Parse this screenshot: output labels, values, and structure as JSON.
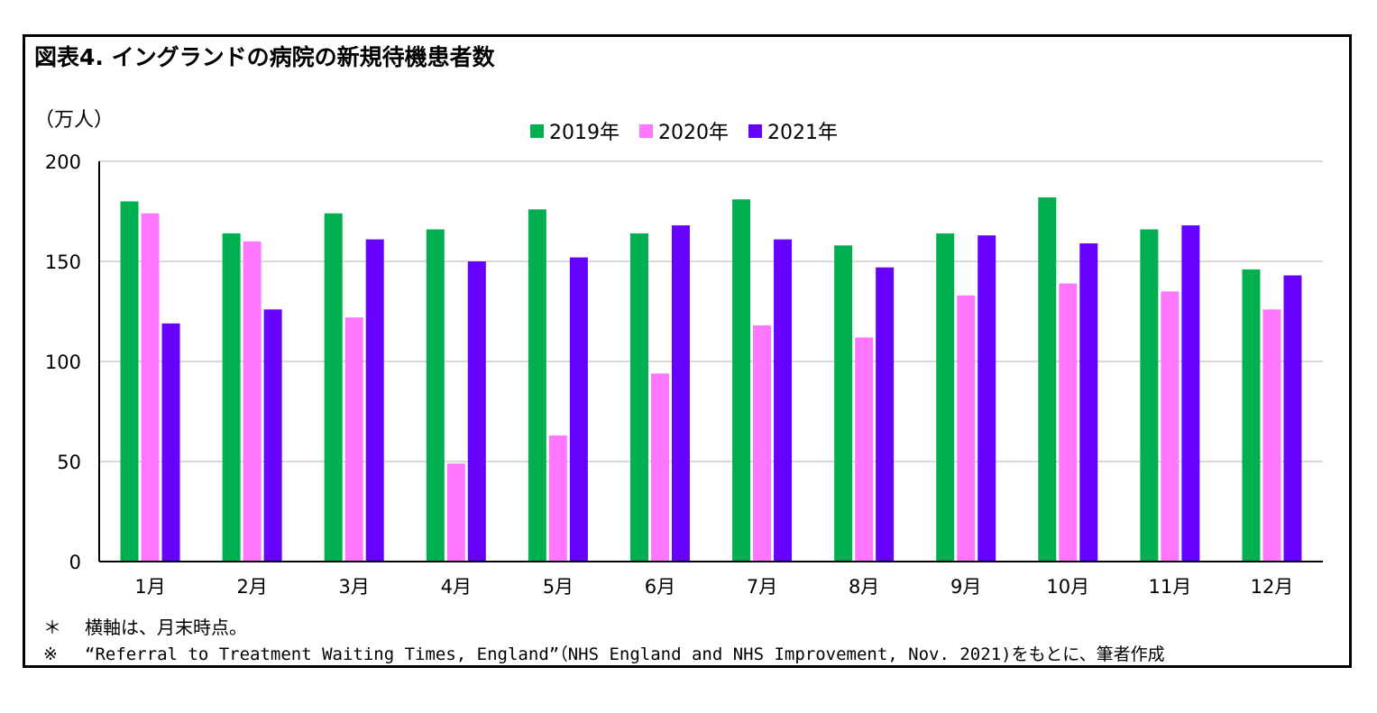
{
  "chart_data": {
    "type": "bar",
    "title": "図表4. イングランドの病院の新規待機患者数",
    "ylabel": "（万人）",
    "xlabel": "",
    "ylim": [
      0,
      200
    ],
    "yticks": [
      0,
      50,
      100,
      150,
      200
    ],
    "grid": true,
    "legend_position": "top-center",
    "categories": [
      "1月",
      "2月",
      "3月",
      "4月",
      "5月",
      "6月",
      "7月",
      "8月",
      "9月",
      "10月",
      "11月",
      "12月"
    ],
    "series": [
      {
        "name": "2019年",
        "color": "#00b050",
        "values": [
          180,
          164,
          174,
          166,
          176,
          164,
          181,
          158,
          164,
          182,
          166,
          146
        ]
      },
      {
        "name": "2020年",
        "color": "#ff77ff",
        "values": [
          174,
          160,
          122,
          49,
          63,
          94,
          118,
          112,
          133,
          139,
          135,
          126
        ]
      },
      {
        "name": "2021年",
        "color": "#6600ff",
        "values": [
          119,
          126,
          161,
          150,
          152,
          168,
          161,
          147,
          163,
          159,
          168,
          143
        ]
      }
    ]
  },
  "notes": {
    "note1_mark": "＊",
    "note1_text": "横軸は、月末時点。",
    "note2_mark": "※",
    "note2_text": "“Referral to Treatment Waiting Times, England”（NHS England and NHS Improvement, Nov. 2021)をもとに、筆者作成"
  }
}
